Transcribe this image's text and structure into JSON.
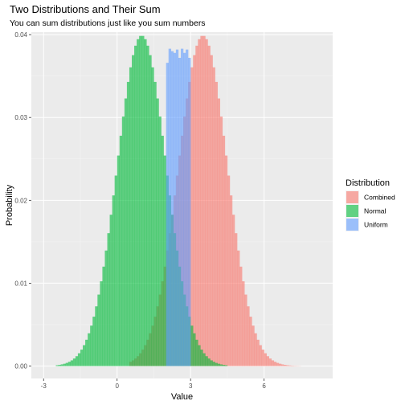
{
  "chart_data": {
    "type": "histogram",
    "title": "Two Distributions and Their Sum",
    "subtitle": "You can sum distributions just like you sum numbers",
    "xlabel": "Value",
    "ylabel": "Probability",
    "xlim": [
      -3.5,
      8.8
    ],
    "ylim": [
      -0.0015,
      0.0403
    ],
    "x_ticks": [
      -3,
      0,
      3,
      6
    ],
    "x_tick_labels": [
      "-3",
      "0",
      "3",
      "6"
    ],
    "y_ticks": [
      0,
      0.01,
      0.02,
      0.03,
      0.04
    ],
    "y_tick_labels": [
      "0.00",
      "0.01",
      "0.02",
      "0.03",
      "0.04"
    ],
    "grid": true,
    "legend_position": "right",
    "legend_title": "Distribution",
    "bin_width": 0.1,
    "series": [
      {
        "name": "Combined",
        "color": "#F8766D",
        "distribution": "normal",
        "mean": 3.5,
        "sd": 1.0,
        "range": [
          0.5,
          7.5
        ]
      },
      {
        "name": "Normal",
        "color": "#00BA38",
        "distribution": "normal",
        "mean": 1.0,
        "sd": 1.0,
        "range": [
          -2.5,
          4.5
        ]
      },
      {
        "name": "Uniform",
        "color": "#619CFF",
        "distribution": "uniform",
        "range": [
          2.0,
          3.0
        ],
        "values": [
          0.0366,
          0.0383,
          0.038,
          0.0378,
          0.0382,
          0.0372,
          0.0383,
          0.0378,
          0.0382,
          0.0372
        ]
      }
    ]
  }
}
